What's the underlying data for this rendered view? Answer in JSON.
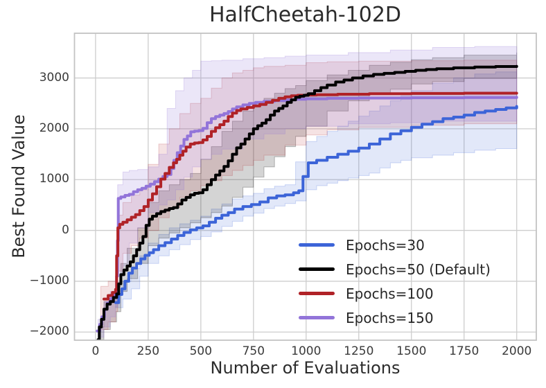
{
  "chart_data": {
    "type": "line",
    "title": "HalfCheetah-102D",
    "xlabel": "Number of Evaluations",
    "ylabel": "Best Found Value",
    "xlim": [
      -100,
      2093
    ],
    "ylim": [
      -2160,
      3880
    ],
    "xticks": [
      0,
      250,
      500,
      750,
      1000,
      1250,
      1500,
      1750,
      2000
    ],
    "yticks": [
      -2000,
      -1000,
      0,
      1000,
      2000,
      3000
    ],
    "grid": true,
    "step": true,
    "legend_position": "lower right",
    "frame_color": "#c3c3c3",
    "grid_color": "#cdcdcd",
    "series": [
      {
        "name": "epochs-30",
        "label": "Epochs=30",
        "color": "#3c64d8",
        "band_opacity": 0.15,
        "x": [
          95,
          110,
          125,
          140,
          158,
          175,
          195,
          215,
          235,
          255,
          275,
          300,
          330,
          360,
          390,
          420,
          450,
          480,
          510,
          540,
          570,
          600,
          630,
          660,
          700,
          740,
          780,
          820,
          860,
          900,
          940,
          965,
          985,
          1010,
          1050,
          1100,
          1150,
          1200,
          1250,
          1300,
          1350,
          1400,
          1450,
          1500,
          1550,
          1600,
          1650,
          1700,
          1750,
          1800,
          1850,
          1900,
          1950,
          2000
        ],
        "y": [
          -1420,
          -1260,
          -1150,
          -1000,
          -840,
          -740,
          -650,
          -560,
          -490,
          -440,
          -380,
          -300,
          -240,
          -170,
          -100,
          -40,
          10,
          50,
          90,
          160,
          240,
          300,
          350,
          420,
          470,
          510,
          560,
          640,
          680,
          700,
          740,
          780,
          1060,
          1330,
          1380,
          1440,
          1500,
          1560,
          1620,
          1700,
          1800,
          1900,
          1960,
          2030,
          2090,
          2140,
          2200,
          2230,
          2270,
          2320,
          2350,
          2380,
          2410,
          2440
        ],
        "band": {
          "x": [
            95,
            130,
            170,
            210,
            250,
            300,
            350,
            400,
            450,
            500,
            550,
            600,
            650,
            700,
            750,
            800,
            850,
            900,
            950,
            1000,
            1050,
            1100,
            1150,
            1200,
            1250,
            1300,
            1350,
            1400,
            1450,
            1500,
            1600,
            1700,
            1800,
            1900,
            2000
          ],
          "lo": [
            -1520,
            -1350,
            -1150,
            -900,
            -650,
            -500,
            -380,
            -280,
            -180,
            -120,
            -30,
            80,
            180,
            280,
            340,
            430,
            480,
            530,
            580,
            800,
            880,
            930,
            980,
            1030,
            1080,
            1130,
            1230,
            1330,
            1380,
            1430,
            1480,
            1530,
            1580,
            1610,
            1640
          ],
          "hi": [
            -1250,
            -1000,
            -750,
            -500,
            -250,
            -80,
            50,
            130,
            200,
            280,
            420,
            520,
            620,
            680,
            730,
            820,
            870,
            900,
            1350,
            1750,
            1850,
            1950,
            2050,
            2150,
            2250,
            2350,
            2450,
            2550,
            2650,
            2750,
            2900,
            3000,
            3080,
            3120,
            3150
          ]
        }
      },
      {
        "name": "epochs-50-default",
        "label": "Epochs=50 (Default)",
        "color": "#000000",
        "band_opacity": 0.17,
        "x": [
          12,
          18,
          28,
          40,
          55,
          70,
          85,
          100,
          110,
          120,
          135,
          150,
          165,
          180,
          195,
          210,
          225,
          240,
          255,
          270,
          290,
          310,
          330,
          350,
          370,
          390,
          410,
          430,
          450,
          470,
          490,
          510,
          530,
          550,
          570,
          590,
          610,
          630,
          650,
          670,
          690,
          710,
          730,
          750,
          770,
          790,
          810,
          830,
          850,
          870,
          890,
          910,
          930,
          950,
          970,
          990,
          1010,
          1040,
          1070,
          1100,
          1140,
          1180,
          1220,
          1270,
          1320,
          1370,
          1420,
          1470,
          1520,
          1570,
          1620,
          1700,
          1800,
          1900,
          2000
        ],
        "y": [
          -2150,
          -1900,
          -1750,
          -1550,
          -1450,
          -1400,
          -1320,
          -1250,
          -1050,
          -870,
          -780,
          -700,
          -620,
          -500,
          -380,
          -250,
          -120,
          100,
          220,
          280,
          330,
          370,
          400,
          430,
          450,
          520,
          600,
          650,
          700,
          730,
          740,
          800,
          900,
          1000,
          1090,
          1170,
          1260,
          1370,
          1500,
          1625,
          1700,
          1800,
          1900,
          2000,
          2060,
          2110,
          2180,
          2270,
          2350,
          2400,
          2450,
          2520,
          2570,
          2620,
          2640,
          2660,
          2690,
          2750,
          2810,
          2860,
          2920,
          2960,
          3000,
          3040,
          3070,
          3090,
          3110,
          3130,
          3150,
          3165,
          3180,
          3200,
          3215,
          3225,
          3230
        ],
        "band": {
          "x": [
            12,
            40,
            70,
            100,
            120,
            150,
            200,
            250,
            300,
            350,
            400,
            450,
            500,
            550,
            600,
            650,
            700,
            750,
            800,
            850,
            900,
            950,
            1000,
            1100,
            1200,
            1300,
            1400,
            1500,
            1600,
            1750,
            2000
          ],
          "lo": [
            -2150,
            -1950,
            -1800,
            -1600,
            -1200,
            -950,
            -650,
            -300,
            -150,
            -50,
            50,
            150,
            250,
            350,
            480,
            650,
            850,
            1050,
            1250,
            1450,
            1650,
            1850,
            2050,
            2350,
            2550,
            2680,
            2780,
            2880,
            2930,
            2990,
            3040
          ],
          "hi": [
            -1900,
            -1400,
            -1250,
            -1100,
            -650,
            -350,
            50,
            550,
            780,
            900,
            1000,
            1120,
            1400,
            1650,
            1950,
            2150,
            2350,
            2500,
            2600,
            2700,
            2790,
            2850,
            2950,
            3060,
            3150,
            3250,
            3310,
            3360,
            3400,
            3450,
            3500
          ]
        }
      },
      {
        "name": "epochs-100",
        "label": "Epochs=100",
        "color": "#b02227",
        "band_opacity": 0.13,
        "x": [
          40,
          60,
          80,
          95,
          100,
          106,
          115,
          130,
          150,
          170,
          190,
          210,
          230,
          250,
          270,
          290,
          310,
          330,
          350,
          370,
          385,
          400,
          415,
          430,
          450,
          470,
          490,
          510,
          530,
          550,
          570,
          590,
          610,
          630,
          650,
          670,
          690,
          720,
          750,
          780,
          810,
          840,
          870,
          900,
          930,
          960,
          1000,
          1050,
          1150,
          1300,
          1500,
          1750,
          2000
        ],
        "y": [
          -1350,
          -1280,
          -1220,
          -1160,
          -500,
          50,
          120,
          160,
          210,
          260,
          310,
          390,
          470,
          600,
          720,
          860,
          1010,
          1120,
          1240,
          1330,
          1400,
          1480,
          1560,
          1640,
          1700,
          1720,
          1730,
          1780,
          1850,
          1950,
          2020,
          2080,
          2150,
          2240,
          2310,
          2360,
          2390,
          2420,
          2450,
          2480,
          2520,
          2560,
          2600,
          2630,
          2650,
          2660,
          2665,
          2670,
          2680,
          2690,
          2695,
          2700,
          2700
        ],
        "band": {
          "x": [
            25,
            60,
            95,
            105,
            130,
            170,
            210,
            250,
            300,
            350,
            400,
            450,
            500,
            550,
            600,
            650,
            700,
            750,
            800,
            900,
            1000,
            1100,
            1250,
            1500,
            1750,
            2000
          ],
          "lo": [
            -1950,
            -1800,
            -1600,
            -800,
            -450,
            -300,
            -150,
            0,
            250,
            450,
            650,
            780,
            880,
            980,
            1080,
            1180,
            1280,
            1380,
            1480,
            1680,
            1880,
            1980,
            2030,
            2070,
            2100,
            2120
          ],
          "hi": [
            -1100,
            -1000,
            -900,
            300,
            550,
            700,
            800,
            1300,
            1700,
            2000,
            2300,
            2500,
            2600,
            2800,
            3000,
            3100,
            3150,
            3200,
            3230,
            3250,
            3300,
            3320,
            3330,
            3340,
            3350,
            3350
          ]
        }
      },
      {
        "name": "epochs-150",
        "label": "Epochs=150",
        "color": "#9274d9",
        "band_opacity": 0.18,
        "x": [
          8,
          20,
          30,
          42,
          55,
          68,
          80,
          92,
          100,
          104,
          108,
          120,
          140,
          160,
          180,
          200,
          220,
          240,
          260,
          280,
          300,
          320,
          340,
          358,
          372,
          388,
          404,
          420,
          436,
          452,
          470,
          490,
          510,
          530,
          550,
          570,
          590,
          610,
          630,
          650,
          670,
          700,
          730,
          760,
          800,
          850,
          900,
          950,
          1000,
          1100,
          1250,
          1500,
          1750,
          2000
        ],
        "y": [
          -1980,
          -1850,
          -1700,
          -1550,
          -1430,
          -1350,
          -1290,
          -1230,
          -900,
          -200,
          630,
          660,
          690,
          710,
          760,
          800,
          830,
          870,
          910,
          960,
          1010,
          1060,
          1100,
          1220,
          1380,
          1530,
          1660,
          1790,
          1860,
          1940,
          1955,
          1965,
          2010,
          2120,
          2200,
          2240,
          2270,
          2300,
          2340,
          2390,
          2430,
          2470,
          2500,
          2520,
          2540,
          2555,
          2570,
          2580,
          2590,
          2600,
          2605,
          2610,
          2615,
          2620
        ],
        "band": {
          "x": [
            12,
            40,
            70,
            95,
            105,
            130,
            160,
            200,
            250,
            300,
            340,
            380,
            420,
            460,
            500,
            550,
            600,
            700,
            800,
            900,
            1000,
            1200,
            1400,
            1600,
            1800,
            2000
          ],
          "lo": [
            -2100,
            -1900,
            -1700,
            -1500,
            -900,
            -700,
            -250,
            50,
            350,
            500,
            600,
            800,
            1050,
            1250,
            1400,
            1500,
            1600,
            1800,
            1900,
            2000,
            2050,
            2100,
            2120,
            2150,
            2150,
            2150
          ],
          "hi": [
            -1750,
            -1400,
            -1200,
            -1000,
            900,
            1150,
            1180,
            1200,
            1250,
            1500,
            2400,
            2750,
            3000,
            3150,
            3330,
            3340,
            3350,
            3380,
            3400,
            3430,
            3450,
            3500,
            3550,
            3600,
            3620,
            3620
          ]
        }
      }
    ]
  }
}
